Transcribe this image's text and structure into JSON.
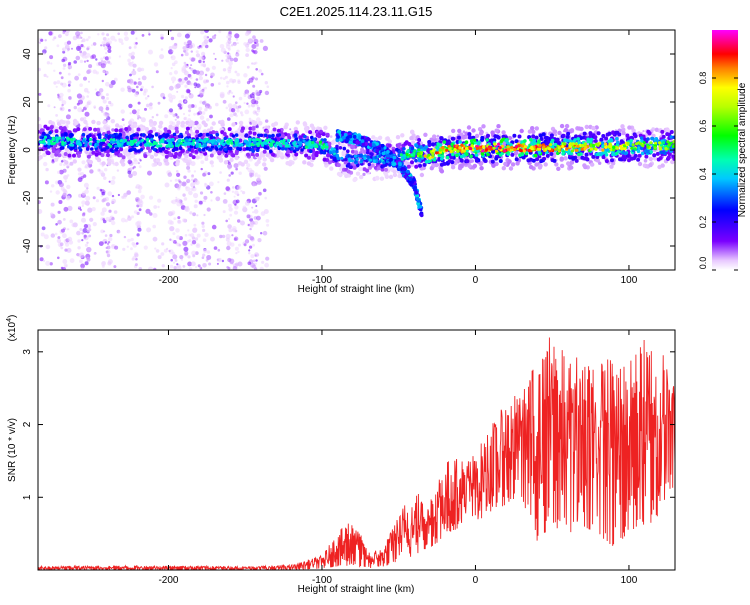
{
  "title": "C2E1.2025.114.23.11.G15",
  "colors": {
    "snr_line": "#ee2222",
    "axis": "#000000",
    "background": "#ffffff"
  },
  "chart_data": [
    {
      "type": "heatmap",
      "xlabel": "Height of straight line (km)",
      "ylabel": "Frequency (Hz)",
      "xlim": [
        -285,
        130
      ],
      "ylim": [
        -50,
        50
      ],
      "xticks": [
        -200,
        -100,
        0,
        100
      ],
      "yticks": [
        -40,
        -20,
        0,
        20,
        40
      ],
      "xtick_labels": [
        "-200",
        "-100",
        "0",
        "100"
      ],
      "ytick_labels": [
        "-40",
        "-20",
        "0",
        "20",
        "40"
      ],
      "colorbar": {
        "label": "Normalized spectral amplitude",
        "range": [
          0,
          1
        ],
        "ticks": [
          0.0,
          0.2,
          0.4,
          0.6,
          0.8
        ],
        "tick_labels": [
          "0.0",
          "0.2",
          "0.4",
          "0.6",
          "0.8"
        ],
        "colormap": "rainbow (white-violet-blue-cyan-green-yellow-red-magenta)"
      },
      "ridge": {
        "description": "main spectral band near 0 Hz",
        "x": [
          -285,
          -250,
          -200,
          -150,
          -120,
          -100,
          -90,
          -80,
          -70,
          -60,
          -50,
          -40,
          -30,
          -20,
          0,
          50,
          100,
          130
        ],
        "freq": [
          4,
          3,
          3,
          3,
          3,
          2,
          -2,
          -4,
          -3,
          -4,
          -3,
          -1,
          -2,
          0,
          1,
          1,
          1.5,
          2
        ],
        "amplitude": [
          0.45,
          0.45,
          0.45,
          0.45,
          0.45,
          0.5,
          0.4,
          0.35,
          0.35,
          0.4,
          0.45,
          0.6,
          0.8,
          0.85,
          0.9,
          0.85,
          0.7,
          0.6
        ]
      },
      "secondary_branch": {
        "description": "diverging descending branch",
        "x": [
          -90,
          -80,
          -70,
          -60,
          -50,
          -45,
          -40,
          -35
        ],
        "freq": [
          6,
          5,
          3,
          0,
          -6,
          -10,
          -14,
          -26
        ]
      },
      "noisy_region_x": [
        -285,
        -135
      ]
    },
    {
      "type": "line",
      "xlabel": "Height of straight line (km)",
      "ylabel": "SNR (10 * v/v)",
      "y_scale_label": "(x10^4)",
      "xlim": [
        -285,
        130
      ],
      "ylim": [
        0,
        3.3
      ],
      "xticks": [
        -200,
        -100,
        0,
        100
      ],
      "yticks": [
        1,
        2,
        3
      ],
      "xtick_labels": [
        "-200",
        "-100",
        "0",
        "100"
      ],
      "ytick_labels": [
        "1",
        "2",
        "3"
      ],
      "envelope": {
        "description": "approximate upper/lower envelope of the noisy SNR trace",
        "x": [
          -285,
          -250,
          -200,
          -150,
          -120,
          -100,
          -90,
          -80,
          -70,
          -60,
          -50,
          -40,
          -30,
          -20,
          -10,
          0,
          10,
          20,
          30,
          40,
          50,
          60,
          70,
          80,
          90,
          100,
          110,
          120,
          130
        ],
        "upper": [
          0.05,
          0.06,
          0.06,
          0.05,
          0.07,
          0.2,
          0.5,
          0.75,
          0.25,
          0.3,
          0.8,
          1.1,
          1.0,
          1.5,
          1.55,
          1.6,
          2.0,
          2.3,
          2.5,
          2.9,
          3.3,
          2.9,
          3.0,
          3.0,
          2.9,
          2.9,
          3.2,
          3.1,
          2.7
        ],
        "lower": [
          0.0,
          0.0,
          0.0,
          0.0,
          0.0,
          0.02,
          0.05,
          0.05,
          0.02,
          0.05,
          0.1,
          0.2,
          0.3,
          0.45,
          0.6,
          0.65,
          0.8,
          0.9,
          1.0,
          0.4,
          0.6,
          0.5,
          0.6,
          0.5,
          0.3,
          0.5,
          0.6,
          0.7,
          1.2
        ]
      }
    }
  ]
}
